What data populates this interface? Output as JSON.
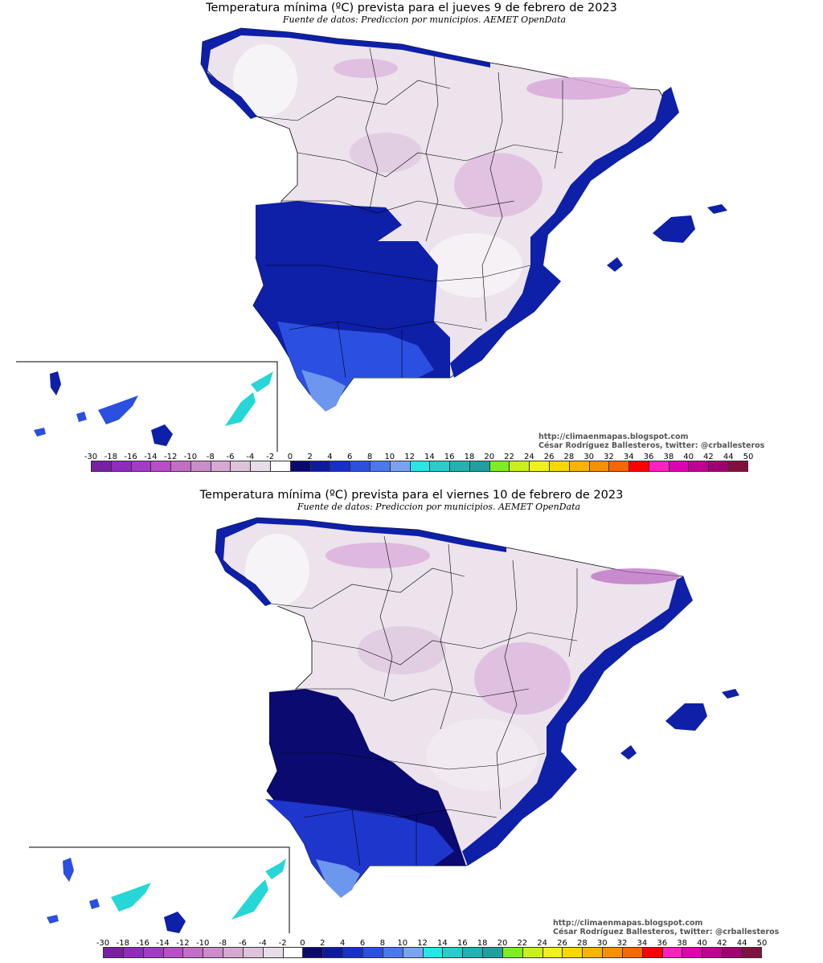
{
  "maps": [
    {
      "title": "Temperatura mínima (ºC) prevista para el jueves 9 de febrero de 2023",
      "subtitle": "Fuente de datos: Prediccion por municipios. AEMET OpenData",
      "credit_url": "http://climaenmapas.blogspot.com",
      "credit_author": "César Rodríguez Ballesteros, twitter: @crballesteros"
    },
    {
      "title": "Temperatura mínima (ºC) prevista para el viernes 10 de febrero de 2023",
      "subtitle": "Fuente de datos: Prediccion por municipios. AEMET OpenData",
      "credit_url": "http://climaenmapas.blogspot.com",
      "credit_author": "César Rodríguez Ballesteros, twitter: @crballesteros"
    }
  ],
  "legend": {
    "labels": [
      "-30",
      "-18",
      "-16",
      "-14",
      "-12",
      "-10",
      "-8",
      "-6",
      "-4",
      "-2",
      "0",
      "2",
      "4",
      "6",
      "8",
      "10",
      "12",
      "14",
      "16",
      "18",
      "20",
      "22",
      "24",
      "26",
      "28",
      "30",
      "32",
      "34",
      "36",
      "38",
      "40",
      "42",
      "44",
      "50"
    ],
    "colors": [
      "#7b1fa2",
      "#8e2cc0",
      "#a03cc8",
      "#b74fc6",
      "#c36ec6",
      "#cc8ccc",
      "#d6a8d2",
      "#ddc2dc",
      "#e8dce8",
      "#ffffff",
      "#0a0a6e",
      "#0d1aa0",
      "#1630c8",
      "#2a50e0",
      "#4a78ee",
      "#7aa4f2",
      "#26e6e6",
      "#28cccc",
      "#20b3b3",
      "#1fa0a0",
      "#7cee20",
      "#c8f020",
      "#f0f020",
      "#f8d800",
      "#f8b400",
      "#f89000",
      "#f86800",
      "#ff0000",
      "#ff20c0",
      "#e000b0",
      "#c00090",
      "#a00070",
      "#801040"
    ]
  },
  "colors": {
    "land_cold": "#ece3ec",
    "land_frost": "#d9a9d9",
    "land_white": "#f7f4f7",
    "coast_blue": "#0e1fa8",
    "dark_blue": "#0a0a70",
    "mid_blue": "#2b4fe0",
    "light_blue": "#6d96ee",
    "cyan": "#27d6d6"
  }
}
